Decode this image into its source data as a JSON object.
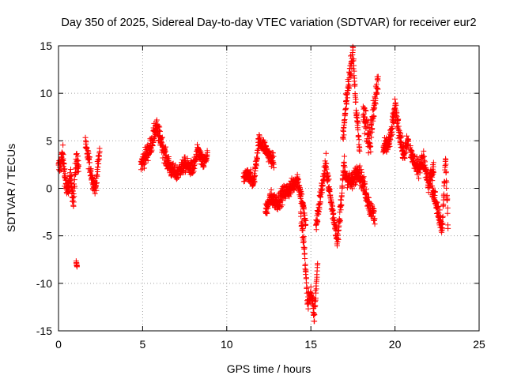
{
  "chart_data": {
    "type": "scatter",
    "title": "Day 350 of 2025, Sidereal Day-to-day VTEC variation (SDTVAR) for receiver eur2",
    "xlabel": "GPS time / hours",
    "ylabel": "SDTVAR / TECUs",
    "xlim": [
      0,
      25
    ],
    "ylim": [
      -15,
      15
    ],
    "xticks": [
      0,
      5,
      10,
      15,
      20,
      25
    ],
    "yticks": [
      -15,
      -10,
      -5,
      0,
      5,
      10,
      15
    ],
    "xtick_labels": [
      "0",
      "5",
      "10",
      "15",
      "20",
      "25"
    ],
    "ytick_labels": [
      "-15",
      "-10",
      "-5",
      "0",
      "5",
      "10",
      "15"
    ],
    "grid": true,
    "marker": "+",
    "series_color": "#ff0000",
    "segments": [
      {
        "x": [
          0.0,
          0.25,
          0.5,
          0.7,
          0.9,
          1.05,
          1.2
        ],
        "y": [
          2.0,
          3.5,
          -0.5,
          1.0,
          -1.0,
          3.0,
          2.5
        ],
        "spread": 2.2
      },
      {
        "x": [
          1.05,
          1.1
        ],
        "y": [
          -7.8,
          -8.2
        ],
        "spread": 0.3
      },
      {
        "x": [
          1.6,
          1.8,
          2.0,
          2.2,
          2.45
        ],
        "y": [
          4.5,
          3.0,
          1.0,
          0.0,
          4.0
        ],
        "spread": 1.6
      },
      {
        "x": [
          4.9,
          5.2,
          5.5,
          5.8,
          6.1,
          6.4,
          6.7
        ],
        "y": [
          2.5,
          3.5,
          4.5,
          6.5,
          5.0,
          3.0,
          2.0
        ],
        "spread": 1.8
      },
      {
        "x": [
          6.7,
          7.0,
          7.5,
          8.0,
          8.3,
          8.6,
          8.85
        ],
        "y": [
          2.0,
          1.5,
          2.5,
          2.0,
          4.0,
          2.5,
          3.5
        ],
        "spread": 1.5
      },
      {
        "x": [
          11.0,
          11.3,
          11.6,
          11.9,
          12.2,
          12.5,
          12.8
        ],
        "y": [
          1.0,
          1.5,
          0.5,
          5.0,
          4.5,
          3.5,
          2.8
        ],
        "spread": 1.4
      },
      {
        "x": [
          12.3,
          12.6,
          13.0,
          13.4,
          13.8,
          14.2,
          14.5,
          14.7
        ],
        "y": [
          -2.5,
          -1.0,
          -1.5,
          -0.5,
          0.0,
          1.0,
          -1.5,
          -4.0
        ],
        "spread": 1.6
      },
      {
        "x": [
          14.4,
          14.6,
          14.8,
          15.0,
          15.2,
          15.4
        ],
        "y": [
          -3.0,
          -6.0,
          -12.0,
          -11.0,
          -13.5,
          -8.0
        ],
        "spread": 1.8
      },
      {
        "x": [
          15.3,
          15.6,
          15.9,
          16.2,
          16.6,
          17.0
        ],
        "y": [
          -4.0,
          -0.5,
          2.5,
          -1.5,
          -5.5,
          3.0
        ],
        "spread": 1.8
      },
      {
        "x": [
          16.9,
          17.1,
          17.3,
          17.5,
          17.7,
          17.9
        ],
        "y": [
          5.0,
          9.0,
          12.0,
          14.5,
          8.0,
          4.0
        ],
        "spread": 2.0
      },
      {
        "x": [
          17.0,
          17.4,
          17.8,
          18.2,
          18.5,
          18.8
        ],
        "y": [
          1.5,
          0.5,
          2.0,
          0.0,
          -2.0,
          -3.0
        ],
        "spread": 1.8
      },
      {
        "x": [
          18.1,
          18.5,
          19.0
        ],
        "y": [
          8.0,
          5.0,
          11.5
        ],
        "spread": 3.0
      },
      {
        "x": [
          19.3,
          19.7,
          20.0,
          20.2,
          20.5,
          20.8
        ],
        "y": [
          4.0,
          5.0,
          8.5,
          6.5,
          3.5,
          5.0
        ],
        "spread": 1.8
      },
      {
        "x": [
          20.9,
          21.3,
          21.7,
          22.0,
          22.3
        ],
        "y": [
          4.0,
          2.0,
          3.0,
          0.5,
          2.0
        ],
        "spread": 1.8
      },
      {
        "x": [
          22.2,
          22.5,
          22.8,
          23.0,
          23.15
        ],
        "y": [
          0.0,
          -2.0,
          -4.5,
          3.0,
          -3.5
        ],
        "spread": 2.0
      }
    ]
  }
}
